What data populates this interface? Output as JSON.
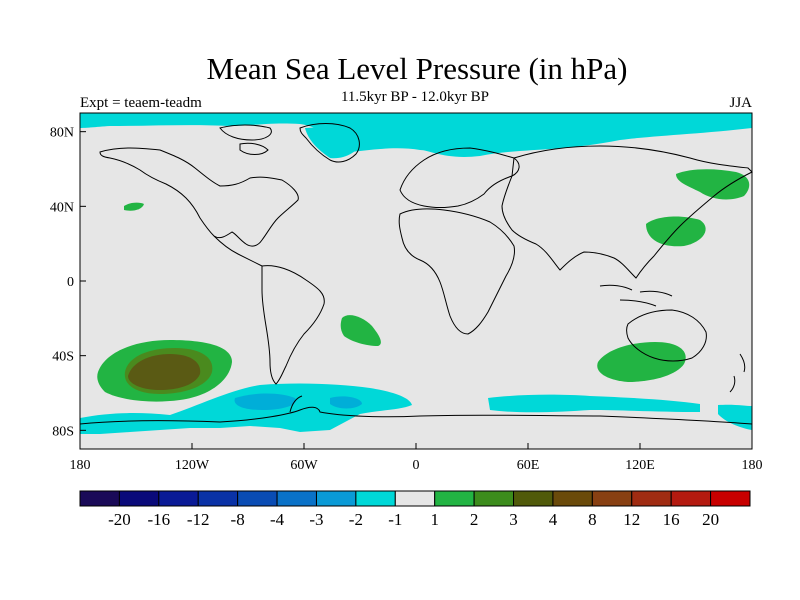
{
  "title": "Mean Sea Level Pressure (in hPa)",
  "subtitle": "11.5kyr BP - 12.0kyr BP",
  "left_note": "Expt = teaem-teadm",
  "right_note": "JJA",
  "colors": {
    "background": "#e6e6e6",
    "coast": "#000000",
    "neg1": "#00d8d8",
    "neg2": "#00aed8",
    "pos1": "#22b443",
    "pos2": "#4a8a1e",
    "pos3": "#5a5a14"
  },
  "axes": {
    "x_ticks": [
      "180",
      "120W",
      "60W",
      "0",
      "60E",
      "120E",
      "180"
    ],
    "y_ticks": [
      "80N",
      "40N",
      "0",
      "40S",
      "80S"
    ]
  },
  "colorbar": {
    "colors": [
      "#1a0a58",
      "#0a0a7a",
      "#0a1a96",
      "#0a32a6",
      "#0a4cb4",
      "#0a72c8",
      "#0a9ad6",
      "#00d8d8",
      "#e6e6e6",
      "#22b443",
      "#3c8c1c",
      "#505a0a",
      "#6a4a0a",
      "#884012",
      "#a02c12",
      "#b41a10",
      "#c80000"
    ],
    "labels": [
      "-20",
      "-16",
      "-12",
      "-8",
      "-4",
      "-3",
      "-2",
      "-1",
      "1",
      "2",
      "3",
      "4",
      "8",
      "12",
      "16",
      "20"
    ]
  }
}
